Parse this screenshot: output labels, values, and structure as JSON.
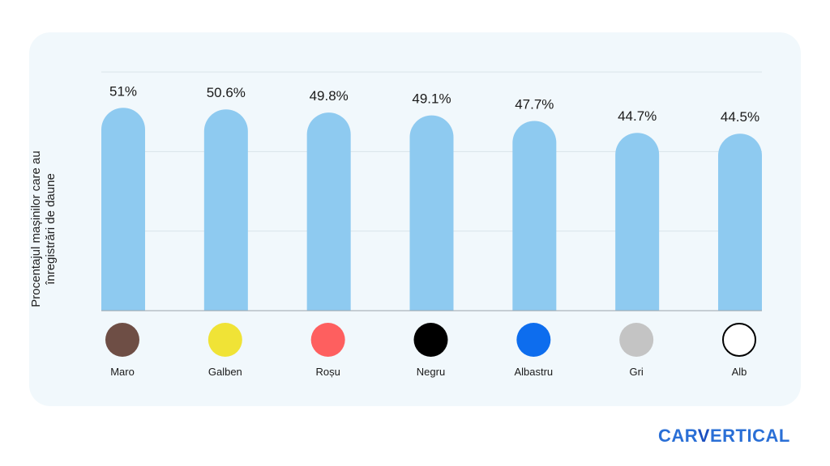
{
  "chart_data": {
    "type": "bar",
    "ylabel": "Procentajul mașinilor care au înregistrări de daune",
    "categories": [
      "Maro",
      "Galben",
      "Roșu",
      "Negru",
      "Albastru",
      "Gri",
      "Alb"
    ],
    "values": [
      51,
      50.6,
      49.8,
      49.1,
      47.7,
      44.7,
      44.5
    ],
    "data_labels": [
      "51%",
      "50.6%",
      "49.8%",
      "49.1%",
      "47.7%",
      "44.7%",
      "44.5%"
    ],
    "swatch_colors": [
      "#6e4e45",
      "#f0e336",
      "#fe5f5f",
      "#000000",
      "#0d6dee",
      "#c4c4c4",
      "#ffffff"
    ],
    "bar_color": "#8ecaf0",
    "grid": true,
    "ylim": [
      0,
      60
    ]
  },
  "brand": {
    "part1": "CAR",
    "part2": "V",
    "part3": "ERTICAL"
  }
}
